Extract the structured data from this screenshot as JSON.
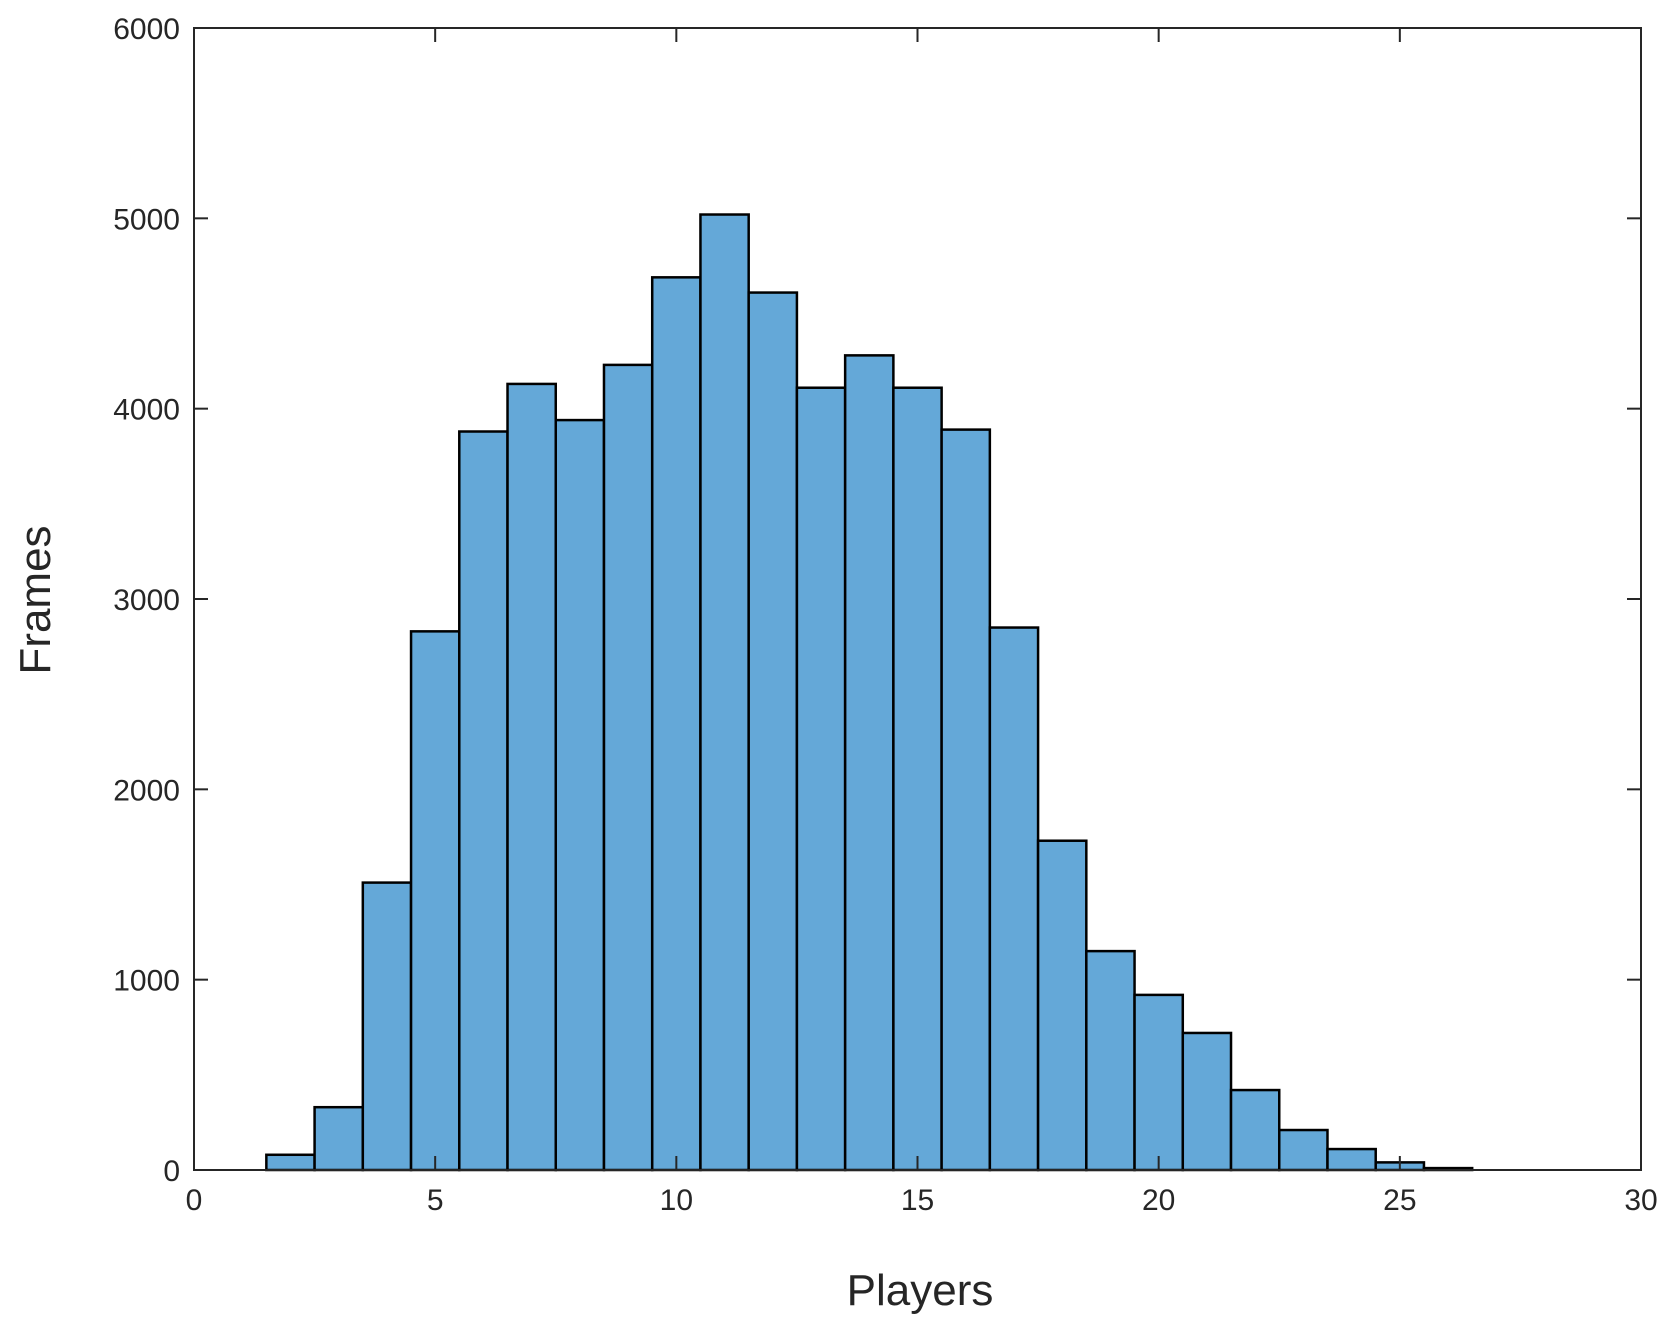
{
  "chart_data": {
    "type": "bar",
    "xlabel": "Players",
    "ylabel": "Frames",
    "xlim": [
      0,
      30
    ],
    "ylim": [
      0,
      6000
    ],
    "xticks": [
      0,
      5,
      10,
      15,
      20,
      25,
      30
    ],
    "yticks": [
      0,
      1000,
      2000,
      3000,
      4000,
      5000,
      6000
    ],
    "grid": false,
    "bin_width": 1,
    "bins": [
      {
        "x": 2,
        "value": 80
      },
      {
        "x": 3,
        "value": 330
      },
      {
        "x": 4,
        "value": 1510
      },
      {
        "x": 5,
        "value": 2830
      },
      {
        "x": 6,
        "value": 3880
      },
      {
        "x": 7,
        "value": 4130
      },
      {
        "x": 8,
        "value": 3940
      },
      {
        "x": 9,
        "value": 4230
      },
      {
        "x": 10,
        "value": 4690
      },
      {
        "x": 11,
        "value": 5020
      },
      {
        "x": 12,
        "value": 4610
      },
      {
        "x": 13,
        "value": 4110
      },
      {
        "x": 14,
        "value": 4280
      },
      {
        "x": 15,
        "value": 4110
      },
      {
        "x": 16,
        "value": 3890
      },
      {
        "x": 17,
        "value": 2850
      },
      {
        "x": 18,
        "value": 1730
      },
      {
        "x": 19,
        "value": 1150
      },
      {
        "x": 20,
        "value": 920
      },
      {
        "x": 21,
        "value": 720
      },
      {
        "x": 22,
        "value": 420
      },
      {
        "x": 23,
        "value": 210
      },
      {
        "x": 24,
        "value": 110
      },
      {
        "x": 25,
        "value": 40
      },
      {
        "x": 26,
        "value": 10
      }
    ],
    "colors": {
      "bar_fill": "#64a8d8",
      "bar_edge": "#000000",
      "axis": "#262626"
    }
  }
}
